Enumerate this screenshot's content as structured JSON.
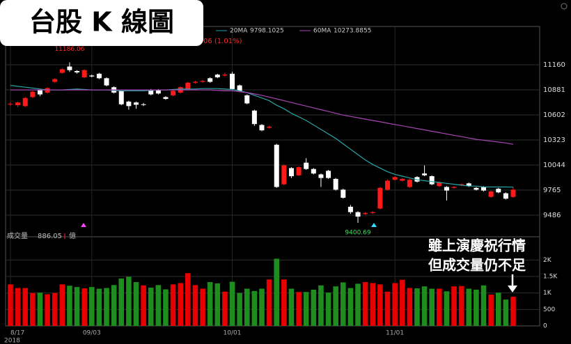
{
  "chart_data": {
    "type": "candlestick",
    "title": "台股 K 線圖",
    "annotation": [
      "雖上演慶祝行情",
      "但成交量仍不足"
    ],
    "change_text": "06 (1.01%)",
    "volume_label": "成交量",
    "volume_unit": "億",
    "year_label": "2018",
    "categories": [
      "8/17",
      null,
      null,
      null,
      null,
      null,
      null,
      null,
      null,
      null,
      null,
      "09/03",
      null,
      null,
      null,
      null,
      null,
      null,
      null,
      null,
      null,
      null,
      null,
      null,
      null,
      null,
      null,
      null,
      null,
      null,
      "10/01",
      null,
      null,
      null,
      null,
      null,
      null,
      null,
      null,
      null,
      null,
      null,
      null,
      null,
      null,
      null,
      null,
      null,
      null,
      null,
      null,
      null,
      "11/01",
      null,
      null,
      null,
      null,
      null,
      null,
      null,
      null,
      null,
      null,
      null,
      null,
      null,
      null,
      null,
      null
    ],
    "open": [
      10720,
      10710,
      10700,
      10800,
      10880,
      10850,
      10970,
      11070,
      11140,
      11090,
      11020,
      11040,
      11060,
      11010,
      10910,
      10870,
      10750,
      10740,
      10720,
      10880,
      10880,
      10800,
      10820,
      10850,
      10890,
      10960,
      10970,
      11010,
      11050,
      11040,
      11060,
      10930,
      10820,
      10650,
      10490,
      10460,
      10270,
      9830,
      10010,
      9930,
      10070,
      10000,
      9940,
      9980,
      9890,
      9770,
      9580,
      9520,
      9500,
      9510,
      9560,
      9770,
      9880,
      9870,
      9800,
      9910,
      9950,
      9920,
      9810,
      9800,
      9790,
      9820,
      9840,
      9790,
      9800,
      9690,
      9780,
      9730,
      9690
    ],
    "high": [
      10745,
      10750,
      10800,
      10870,
      10890,
      10910,
      11010,
      11120,
      11186.06,
      11100,
      11110,
      11050,
      11070,
      11020,
      10920,
      10880,
      10760,
      10750,
      10735,
      10890,
      10890,
      10810,
      10880,
      10920,
      10970,
      10980,
      10990,
      11020,
      11060,
      11070,
      11080,
      10940,
      10830,
      10660,
      10500,
      10480,
      10280,
      10050,
      10020,
      10030,
      10120,
      10010,
      9950,
      9990,
      9900,
      9780,
      9600,
      9530,
      9520,
      9530,
      9800,
      9880,
      9920,
      9900,
      9890,
      9920,
      10040,
      9930,
      9860,
      9810,
      9810,
      9840,
      9850,
      9800,
      9810,
      9760,
      9790,
      9740,
      9800
    ],
    "low": [
      10700,
      10690,
      10690,
      10790,
      10810,
      10840,
      10960,
      11060,
      11080,
      11060,
      11010,
      11020,
      11000,
      10920,
      10840,
      10710,
      10660,
      10670,
      10700,
      10820,
      10830,
      10770,
      10810,
      10840,
      10880,
      10950,
      10960,
      10960,
      11010,
      11030,
      10880,
      10860,
      10720,
      10480,
      10420,
      10450,
      9790,
      9820,
      9900,
      9920,
      9990,
      9940,
      9800,
      9890,
      9760,
      9670,
      9500,
      9400.69,
      9490,
      9500,
      9550,
      9760,
      9870,
      9860,
      9790,
      9850,
      9920,
      9820,
      9800,
      9650,
      9780,
      9810,
      9800,
      9760,
      9750,
      9680,
      9730,
      9660,
      9680
    ],
    "close": [
      10725,
      10740,
      10790,
      10860,
      10830,
      10900,
      11000,
      11110,
      11100,
      11075,
      11100,
      11030,
      11010,
      10930,
      10850,
      10720,
      10700,
      10715,
      10720,
      10830,
      10840,
      10780,
      10870,
      10910,
      10960,
      10970,
      10980,
      10970,
      11020,
      11050,
      10890,
      10870,
      10730,
      10500,
      10430,
      10470,
      9800,
      10040,
      9920,
      10020,
      10000,
      9950,
      9900,
      9900,
      9770,
      9680,
      9520,
      9470,
      9510,
      9520,
      9790,
      9870,
      9910,
      9890,
      9880,
      9860,
      9930,
      9830,
      9850,
      9760,
      9800,
      9830,
      9810,
      9770,
      9760,
      9750,
      9740,
      9670,
      9770
    ],
    "volume": [
      1260,
      1150,
      1150,
      1000,
      1010,
      960,
      1000,
      1260,
      1220,
      1180,
      1140,
      1180,
      1130,
      1150,
      1240,
      1440,
      1490,
      1330,
      1230,
      1160,
      1240,
      1110,
      1260,
      1300,
      1600,
      1240,
      1130,
      1330,
      1290,
      1040,
      1340,
      1000,
      1130,
      1060,
      1130,
      1410,
      2040,
      1410,
      1130,
      1030,
      1030,
      1100,
      1230,
      1010,
      1200,
      1320,
      1150,
      1280,
      1330,
      1300,
      1260,
      1040,
      1300,
      1400,
      1150,
      1140,
      1200,
      1130,
      1130,
      1050,
      1200,
      1210,
      1130,
      1100,
      1230,
      950,
      1010,
      800,
      886.05
    ],
    "up_color": "#ff1a1a",
    "down_color": "#ffffff",
    "vol_up_color": "#e60000",
    "vol_down_color": "#1e8c1e",
    "series": [
      {
        "name": "20MA",
        "color": "#2aa6a6",
        "values": [
          10930,
          10920,
          10910,
          10900,
          10890,
          10880,
          10880,
          10880,
          10885,
          10890,
          10885,
          10880,
          10880,
          10880,
          10875,
          10870,
          10870,
          10870,
          10870,
          10875,
          10880,
          10880,
          10885,
          10890,
          10890,
          10890,
          10895,
          10895,
          10895,
          10890,
          10885,
          10870,
          10850,
          10820,
          10790,
          10760,
          10710,
          10670,
          10620,
          10580,
          10540,
          10490,
          10440,
          10390,
          10340,
          10280,
          10220,
          10160,
          10100,
          10050,
          10010,
          9970,
          9940,
          9920,
          9900,
          9880,
          9870,
          9860,
          9850,
          9840,
          9830,
          9820,
          9810,
          9810,
          9800,
          9800,
          9800,
          9800,
          9798.1025
        ]
      },
      {
        "name": "60MA",
        "color": "#a845b4",
        "values": [
          10880,
          10880,
          10880,
          10880,
          10880,
          10880,
          10880,
          10880,
          10880,
          10880,
          10880,
          10880,
          10880,
          10880,
          10880,
          10880,
          10880,
          10880,
          10880,
          10880,
          10880,
          10880,
          10880,
          10880,
          10880,
          10880,
          10880,
          10880,
          10875,
          10870,
          10870,
          10860,
          10850,
          10835,
          10820,
          10800,
          10780,
          10760,
          10740,
          10720,
          10700,
          10680,
          10660,
          10640,
          10620,
          10600,
          10585,
          10570,
          10555,
          10540,
          10525,
          10510,
          10495,
          10480,
          10465,
          10450,
          10435,
          10420,
          10405,
          10390,
          10375,
          10360,
          10345,
          10330,
          10320,
          10310,
          10300,
          10290,
          10273.8855
        ]
      }
    ],
    "ylim": [
      9246,
      11586
    ],
    "yticks": [
      9486,
      9765,
      10044,
      10323,
      10602,
      10881,
      11160
    ],
    "vlim": [
      0,
      2600
    ],
    "vticks": [
      0,
      500,
      {
        "value": 1000,
        "label": "1K"
      },
      {
        "value": 1500,
        "label": "1.5K"
      },
      {
        "value": 2000,
        "label": "2K"
      }
    ],
    "grid": true
  }
}
